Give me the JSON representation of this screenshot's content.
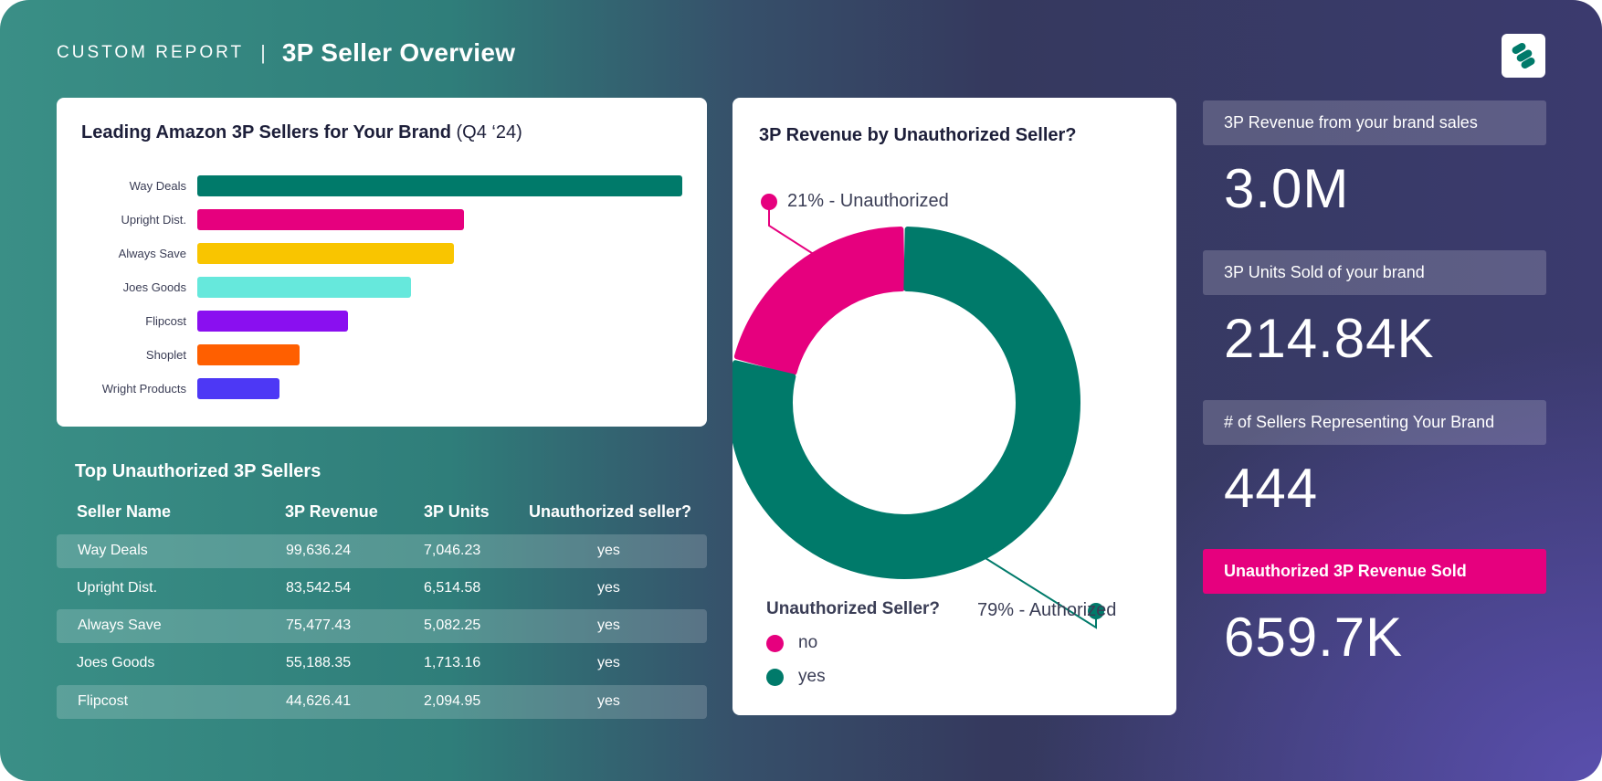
{
  "header": {
    "kicker": "CUSTOM REPORT",
    "separator": "|",
    "title": "3P Seller Overview"
  },
  "bar_card": {
    "title": "Leading Amazon 3P Sellers for Your Brand",
    "title_suffix": "(Q4 ‘24)"
  },
  "donut_card": {
    "title": "3P Revenue by Unauthorized Seller?",
    "callout_unauthorized": "21% - Unauthorized",
    "callout_authorized": "79% - Authorized",
    "legend_title": "Unauthorized Seller?",
    "legend": [
      {
        "label": "no",
        "color": "#e6007e"
      },
      {
        "label": "yes",
        "color": "#007a6a"
      }
    ]
  },
  "table": {
    "title": "Top Unauthorized 3P Sellers",
    "columns": [
      "Seller Name",
      "3P Revenue",
      "3P Units",
      "Unauthorized seller?"
    ],
    "rows": [
      [
        "Way Deals",
        "99,636.24",
        "7,046.23",
        "yes"
      ],
      [
        "Upright Dist.",
        "83,542.54",
        "6,514.58",
        "yes"
      ],
      [
        "Always Save",
        "75,477.43",
        "5,082.25",
        "yes"
      ],
      [
        "Joes Goods",
        "55,188.35",
        "1,713.16",
        "yes"
      ],
      [
        "Flipcost",
        "44,626.41",
        "2,094.95",
        "yes"
      ]
    ]
  },
  "kpis": [
    {
      "label": "3P Revenue from your brand sales",
      "value": "3.0M"
    },
    {
      "label": "3P Units Sold of your brand",
      "value": "214.84K"
    },
    {
      "label": "# of Sellers Representing Your Brand",
      "value": "444"
    },
    {
      "label": "Unauthorized 3P Revenue Sold",
      "value": "659.7K"
    }
  ],
  "chart_data": [
    {
      "type": "bar",
      "orientation": "horizontal",
      "title": "Leading Amazon 3P Sellers for Your Brand (Q4 ‘24)",
      "categories": [
        "Way Deals",
        "Upright Dist.",
        "Always Save",
        "Joes Goods",
        "Flipcost",
        "Shoplet",
        "Wright Products"
      ],
      "values": [
        100,
        55,
        53,
        44,
        31,
        21,
        17
      ],
      "colors": [
        "#007a6a",
        "#e6007e",
        "#f9c500",
        "#66e8dc",
        "#8a0ff0",
        "#ff5f00",
        "#4d38f5"
      ],
      "grid": false
    },
    {
      "type": "pie",
      "variant": "donut",
      "title": "3P Revenue by Unauthorized Seller?",
      "labels": [
        "Unauthorized",
        "Authorized"
      ],
      "values": [
        21,
        79
      ],
      "colors": [
        "#e6007e",
        "#007a6a"
      ],
      "legend_title": "Unauthorized Seller?",
      "legend_position": "bottom-left"
    }
  ]
}
